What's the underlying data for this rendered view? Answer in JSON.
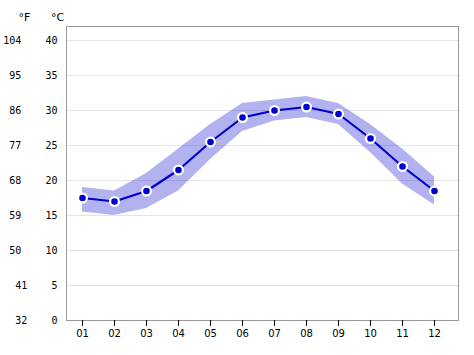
{
  "chart_data": {
    "type": "line",
    "x": [
      1,
      2,
      3,
      4,
      5,
      6,
      7,
      8,
      9,
      10,
      11,
      12
    ],
    "values": [
      17.5,
      17.0,
      18.5,
      21.5,
      25.5,
      29.0,
      30.0,
      30.5,
      29.5,
      26.0,
      22.0,
      18.5
    ],
    "high": [
      19.0,
      18.5,
      21.0,
      24.5,
      28.0,
      31.0,
      31.5,
      32.0,
      31.0,
      28.0,
      24.5,
      20.5
    ],
    "low": [
      15.5,
      15.0,
      16.0,
      18.5,
      23.0,
      27.0,
      28.5,
      29.0,
      28.0,
      24.0,
      19.5,
      16.5
    ],
    "color": "#0000cc",
    "marker": "circle",
    "xlim": [
      0.5,
      12.75
    ],
    "xticks": [
      {
        "value": 1,
        "label": "01"
      },
      {
        "value": 2,
        "label": "02"
      },
      {
        "value": 3,
        "label": "03"
      },
      {
        "value": 4,
        "label": "04"
      },
      {
        "value": 5,
        "label": "05"
      },
      {
        "value": 6,
        "label": "06"
      },
      {
        "value": 7,
        "label": "07"
      },
      {
        "value": 8,
        "label": "08"
      },
      {
        "value": 9,
        "label": "09"
      },
      {
        "value": 10,
        "label": "10"
      },
      {
        "value": 11,
        "label": "11"
      },
      {
        "value": 12,
        "label": "12"
      }
    ],
    "ylim": [
      0,
      42
    ],
    "yticks": [
      {
        "value": 0,
        "label": "32    0"
      },
      {
        "value": 5,
        "label": "41    5"
      },
      {
        "value": 10,
        "label": "50    10"
      },
      {
        "value": 15,
        "label": "59    15"
      },
      {
        "value": 20,
        "label": "68    20"
      },
      {
        "value": 25,
        "label": "77    25"
      },
      {
        "value": 30,
        "label": "86    30"
      },
      {
        "value": 35,
        "label": "95    35"
      },
      {
        "value": 40,
        "label": "104    40"
      }
    ],
    "grid": true,
    "annotations": [
      "°F",
      "°C"
    ]
  }
}
